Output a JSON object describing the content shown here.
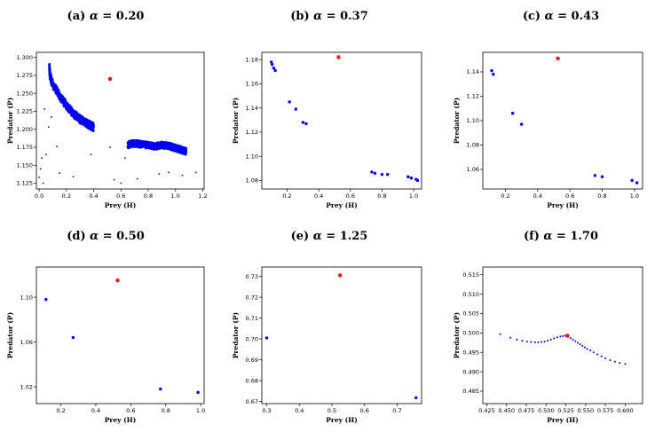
{
  "figure": {
    "colors": {
      "points": "#0000ee",
      "equilibrium": "#e82020",
      "axes": "#000000"
    }
  },
  "chart_data": [
    {
      "type": "scatter",
      "label": "(a)",
      "alpha": "0.20",
      "xlabel": "Prey (H)",
      "ylabel": "Predator (P)",
      "xlim": [
        -0.02,
        1.21
      ],
      "ylim": [
        1.117,
        1.307
      ],
      "xticks": [
        "0.0",
        "0.2",
        "0.4",
        "0.6",
        "0.8",
        "1.0",
        "1.2"
      ],
      "yticks": [
        "1.125",
        "1.150",
        "1.175",
        "1.200",
        "1.225",
        "1.250",
        "1.275",
        "1.300"
      ],
      "equilibrium": {
        "x": 0.52,
        "y": 1.27
      },
      "curves": [
        {
          "x": [
            0.075,
            0.08,
            0.1,
            0.15,
            0.2,
            0.25,
            0.3,
            0.35,
            0.38,
            0.4
          ],
          "y": [
            1.287,
            1.275,
            1.262,
            1.247,
            1.233,
            1.222,
            1.214,
            1.208,
            1.205,
            1.203
          ],
          "width": 0.012,
          "marker_size": 1.1
        },
        {
          "x": [
            0.65,
            0.68,
            0.72,
            0.75,
            0.8,
            0.85,
            0.9,
            0.95,
            1.0,
            1.05,
            1.08
          ],
          "y": [
            1.178,
            1.18,
            1.18,
            1.179,
            1.178,
            1.176,
            1.178,
            1.177,
            1.174,
            1.171,
            1.169
          ],
          "width": 0.01,
          "marker_size": 1.1
        }
      ],
      "points": [
        {
          "x": 0.0,
          "y": 1.133,
          "size": 0.9
        },
        {
          "x": 0.01,
          "y": 1.145,
          "size": 0.9
        },
        {
          "x": 0.02,
          "y": 1.16,
          "size": 0.9
        },
        {
          "x": 0.03,
          "y": 1.125,
          "size": 0.9
        },
        {
          "x": 0.05,
          "y": 1.165,
          "size": 0.9
        },
        {
          "x": 0.04,
          "y": 1.228,
          "size": 0.9
        },
        {
          "x": 0.07,
          "y": 1.203,
          "size": 0.9
        },
        {
          "x": 0.09,
          "y": 1.217,
          "size": 0.9
        },
        {
          "x": 0.13,
          "y": 1.176,
          "size": 0.9
        },
        {
          "x": 0.15,
          "y": 1.139,
          "size": 0.9
        },
        {
          "x": 0.25,
          "y": 1.134,
          "size": 0.9
        },
        {
          "x": 0.38,
          "y": 1.165,
          "size": 0.9
        },
        {
          "x": 0.52,
          "y": 1.175,
          "size": 0.9
        },
        {
          "x": 0.55,
          "y": 1.13,
          "size": 0.9
        },
        {
          "x": 0.63,
          "y": 1.16,
          "size": 0.9
        },
        {
          "x": 0.72,
          "y": 1.131,
          "size": 0.9
        },
        {
          "x": 0.88,
          "y": 1.138,
          "size": 0.9
        },
        {
          "x": 0.95,
          "y": 1.14,
          "size": 0.9
        },
        {
          "x": 1.05,
          "y": 1.136,
          "size": 0.9
        },
        {
          "x": 1.15,
          "y": 1.14,
          "size": 0.9
        },
        {
          "x": 0.6,
          "y": 1.125,
          "size": 0.9
        }
      ]
    },
    {
      "type": "scatter",
      "label": "(b)",
      "alpha": "0.37",
      "xlabel": "Prey (H)",
      "ylabel": "Predator (P)",
      "xlim": [
        0.04,
        1.05
      ],
      "ylim": [
        1.073,
        1.186
      ],
      "xticks": [
        "0.2",
        "0.4",
        "0.6",
        "0.8",
        "1.0"
      ],
      "yticks": [
        "1.08",
        "1.10",
        "1.12",
        "1.14",
        "1.16",
        "1.18"
      ],
      "equilibrium": {
        "x": 0.525,
        "y": 1.182
      },
      "points": [
        {
          "x": 0.1,
          "y": 1.178,
          "size": 1.7
        },
        {
          "x": 0.105,
          "y": 1.176,
          "size": 1.7
        },
        {
          "x": 0.115,
          "y": 1.173,
          "size": 1.7
        },
        {
          "x": 0.125,
          "y": 1.171,
          "size": 1.7
        },
        {
          "x": 0.215,
          "y": 1.145,
          "size": 1.7
        },
        {
          "x": 0.255,
          "y": 1.139,
          "size": 1.7
        },
        {
          "x": 0.3,
          "y": 1.128,
          "size": 1.7
        },
        {
          "x": 0.32,
          "y": 1.127,
          "size": 1.7
        },
        {
          "x": 0.735,
          "y": 1.087,
          "size": 1.7
        },
        {
          "x": 0.755,
          "y": 1.086,
          "size": 1.7
        },
        {
          "x": 0.8,
          "y": 1.085,
          "size": 1.7
        },
        {
          "x": 0.835,
          "y": 1.085,
          "size": 1.7
        },
        {
          "x": 0.965,
          "y": 1.083,
          "size": 1.7
        },
        {
          "x": 0.985,
          "y": 1.082,
          "size": 1.7
        },
        {
          "x": 1.015,
          "y": 1.081,
          "size": 1.7
        },
        {
          "x": 1.025,
          "y": 1.08,
          "size": 1.7
        }
      ]
    },
    {
      "type": "scatter",
      "label": "(c)",
      "alpha": "0.43",
      "xlabel": "Prey (H)",
      "ylabel": "Predator (P)",
      "xlim": [
        0.06,
        1.05
      ],
      "ylim": [
        1.044,
        1.156
      ],
      "xticks": [
        "0.2",
        "0.4",
        "0.6",
        "0.8",
        "1.0"
      ],
      "yticks": [
        "1.06",
        "1.08",
        "1.10",
        "1.12",
        "1.14"
      ],
      "equilibrium": {
        "x": 0.525,
        "y": 1.151
      },
      "points": [
        {
          "x": 0.115,
          "y": 1.141,
          "size": 1.7
        },
        {
          "x": 0.125,
          "y": 1.138,
          "size": 1.7
        },
        {
          "x": 0.245,
          "y": 1.106,
          "size": 1.7
        },
        {
          "x": 0.3,
          "y": 1.097,
          "size": 1.7
        },
        {
          "x": 0.755,
          "y": 1.055,
          "size": 1.7
        },
        {
          "x": 0.8,
          "y": 1.054,
          "size": 1.7
        },
        {
          "x": 0.985,
          "y": 1.051,
          "size": 1.7
        },
        {
          "x": 1.015,
          "y": 1.049,
          "size": 1.7
        }
      ]
    },
    {
      "type": "scatter",
      "label": "(d)",
      "alpha": "0.50",
      "xlabel": "Prey (H)",
      "ylabel": "Predator (P)",
      "xlim": [
        0.06,
        1.02
      ],
      "ylim": [
        1.005,
        1.127
      ],
      "xticks": [
        "0.2",
        "0.4",
        "0.6",
        "0.8",
        "1.0"
      ],
      "yticks": [
        "1.02",
        "1.06",
        "1.10"
      ],
      "equilibrium": {
        "x": 0.525,
        "y": 1.115
      },
      "points": [
        {
          "x": 0.115,
          "y": 1.098,
          "size": 1.7
        },
        {
          "x": 0.27,
          "y": 1.064,
          "size": 1.7
        },
        {
          "x": 0.77,
          "y": 1.018,
          "size": 1.7
        },
        {
          "x": 0.985,
          "y": 1.015,
          "size": 1.7
        }
      ]
    },
    {
      "type": "scatter",
      "label": "(e)",
      "alpha": "1.25",
      "xlabel": "Prey (H)",
      "ylabel": "Predator (P)",
      "xlim": [
        0.285,
        0.775
      ],
      "ylim": [
        0.669,
        0.7345
      ],
      "xticks": [
        "0.3",
        "0.4",
        "0.5",
        "0.6",
        "0.7"
      ],
      "yticks": [
        "0.67",
        "0.68",
        "0.69",
        "0.70",
        "0.71",
        "0.72",
        "0.73"
      ],
      "equilibrium": {
        "x": 0.525,
        "y": 0.7305
      },
      "points": [
        {
          "x": 0.3,
          "y": 0.7005,
          "size": 1.7
        },
        {
          "x": 0.758,
          "y": 0.6718,
          "size": 1.7
        }
      ]
    },
    {
      "type": "scatter",
      "label": "(f)",
      "alpha": "1.70",
      "xlabel": "Prey (H)",
      "ylabel": "Predator (P)",
      "xlim": [
        0.42,
        0.622
      ],
      "ylim": [
        0.4818,
        0.517
      ],
      "xticks": [
        "0.425",
        "0.450",
        "0.475",
        "0.500",
        "0.525",
        "0.550",
        "0.575",
        "0.600"
      ],
      "yticks": [
        "0.485",
        "0.490",
        "0.495",
        "0.500",
        "0.505",
        "0.510",
        "0.515"
      ],
      "equilibrium": {
        "x": 0.527,
        "y": 0.4993
      },
      "points": [
        {
          "x": 0.442,
          "y": 0.4997,
          "size": 1.0
        },
        {
          "x": 0.455,
          "y": 0.4988,
          "size": 1.0
        },
        {
          "x": 0.463,
          "y": 0.4983,
          "size": 1.0
        },
        {
          "x": 0.47,
          "y": 0.498,
          "size": 1.0
        },
        {
          "x": 0.476,
          "y": 0.4978,
          "size": 1.0
        },
        {
          "x": 0.481,
          "y": 0.4977,
          "size": 1.0
        },
        {
          "x": 0.486,
          "y": 0.4976,
          "size": 1.0
        },
        {
          "x": 0.49,
          "y": 0.4976,
          "size": 1.0
        },
        {
          "x": 0.494,
          "y": 0.4977,
          "size": 1.0
        },
        {
          "x": 0.498,
          "y": 0.4978,
          "size": 1.0
        },
        {
          "x": 0.502,
          "y": 0.498,
          "size": 1.0
        },
        {
          "x": 0.506,
          "y": 0.4983,
          "size": 1.0
        },
        {
          "x": 0.51,
          "y": 0.4986,
          "size": 1.0
        },
        {
          "x": 0.514,
          "y": 0.4989,
          "size": 1.0
        },
        {
          "x": 0.518,
          "y": 0.4991,
          "size": 1.0
        },
        {
          "x": 0.521,
          "y": 0.4992,
          "size": 1.0
        },
        {
          "x": 0.524,
          "y": 0.4993,
          "size": 1.0
        },
        {
          "x": 0.528,
          "y": 0.499,
          "size": 1.0
        },
        {
          "x": 0.531,
          "y": 0.4987,
          "size": 1.0
        },
        {
          "x": 0.534,
          "y": 0.4983,
          "size": 1.0
        },
        {
          "x": 0.537,
          "y": 0.4979,
          "size": 1.0
        },
        {
          "x": 0.54,
          "y": 0.4975,
          "size": 1.0
        },
        {
          "x": 0.543,
          "y": 0.4971,
          "size": 1.0
        },
        {
          "x": 0.546,
          "y": 0.4967,
          "size": 1.0
        },
        {
          "x": 0.549,
          "y": 0.4963,
          "size": 1.0
        },
        {
          "x": 0.552,
          "y": 0.4959,
          "size": 1.0
        },
        {
          "x": 0.556,
          "y": 0.4955,
          "size": 1.0
        },
        {
          "x": 0.56,
          "y": 0.495,
          "size": 1.0
        },
        {
          "x": 0.565,
          "y": 0.4945,
          "size": 1.0
        },
        {
          "x": 0.57,
          "y": 0.494,
          "size": 1.0
        },
        {
          "x": 0.575,
          "y": 0.4935,
          "size": 1.0
        },
        {
          "x": 0.581,
          "y": 0.493,
          "size": 1.0
        },
        {
          "x": 0.587,
          "y": 0.4926,
          "size": 1.0
        },
        {
          "x": 0.593,
          "y": 0.4923,
          "size": 1.0
        },
        {
          "x": 0.6,
          "y": 0.492,
          "size": 1.0
        }
      ]
    }
  ]
}
